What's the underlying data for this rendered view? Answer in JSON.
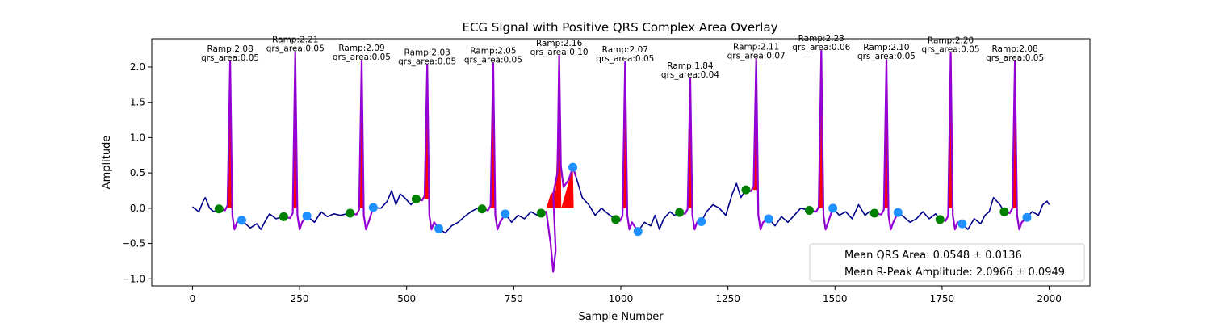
{
  "chart_data": {
    "type": "line",
    "title": "ECG Signal with Positive QRS Complex Area Overlay",
    "xlabel": "Sample Number",
    "ylabel": "Amplitude",
    "xlim": [
      -95,
      2095
    ],
    "ylim": [
      -1.1,
      2.4
    ],
    "xticks": [
      0,
      250,
      500,
      750,
      1000,
      1250,
      1500,
      1750,
      2000
    ],
    "yticks": [
      -1.0,
      -0.5,
      0.0,
      0.5,
      1.0,
      1.5,
      2.0
    ],
    "grid": false,
    "colors": {
      "signal": "#00008b",
      "qrs_segment": "#9400d3",
      "qrs_area": "#ff0000",
      "onset_marker": "#008000",
      "offset_marker": "#1e90ff"
    },
    "beats": [
      {
        "r_sample": 88,
        "r_amp": 2.08,
        "qrs_area": 0.05,
        "onset_sample": 62,
        "onset_amp": -0.01,
        "offset_sample": 115,
        "offset_amp": -0.17,
        "ramp_label": "Ramp:2.08",
        "area_label": "qrs_area:0.05"
      },
      {
        "r_sample": 240,
        "r_amp": 2.21,
        "qrs_area": 0.05,
        "onset_sample": 213,
        "onset_amp": -0.12,
        "offset_sample": 267,
        "offset_amp": -0.11,
        "ramp_label": "Ramp:2.21",
        "area_label": "qrs_area:0.05"
      },
      {
        "r_sample": 395,
        "r_amp": 2.09,
        "qrs_area": 0.05,
        "onset_sample": 368,
        "onset_amp": -0.07,
        "offset_sample": 422,
        "offset_amp": 0.01,
        "ramp_label": "Ramp:2.09",
        "area_label": "qrs_area:0.05"
      },
      {
        "r_sample": 548,
        "r_amp": 2.03,
        "qrs_area": 0.05,
        "onset_sample": 522,
        "onset_amp": 0.13,
        "offset_sample": 575,
        "offset_amp": -0.29,
        "ramp_label": "Ramp:2.03",
        "area_label": "qrs_area:0.05"
      },
      {
        "r_sample": 702,
        "r_amp": 2.05,
        "qrs_area": 0.05,
        "onset_sample": 676,
        "onset_amp": -0.01,
        "offset_sample": 730,
        "offset_amp": -0.08,
        "ramp_label": "Ramp:2.05",
        "area_label": "qrs_area:0.05"
      },
      {
        "r_sample": 856,
        "r_amp": 2.16,
        "qrs_area": 0.1,
        "onset_sample": 814,
        "onset_amp": -0.07,
        "offset_sample": 888,
        "offset_amp": 0.58,
        "ramp_label": "Ramp:2.16",
        "area_label": "qrs_area:0.10"
      },
      {
        "r_sample": 1010,
        "r_amp": 2.07,
        "qrs_area": 0.05,
        "onset_sample": 988,
        "onset_amp": -0.16,
        "offset_sample": 1040,
        "offset_amp": -0.33,
        "ramp_label": "Ramp:2.07",
        "area_label": "qrs_area:0.05"
      },
      {
        "r_sample": 1162,
        "r_amp": 1.84,
        "qrs_area": 0.04,
        "onset_sample": 1137,
        "onset_amp": -0.06,
        "offset_sample": 1188,
        "offset_amp": -0.19,
        "ramp_label": "Ramp:1.84",
        "area_label": "qrs_area:0.04"
      },
      {
        "r_sample": 1316,
        "r_amp": 2.11,
        "qrs_area": 0.07,
        "onset_sample": 1292,
        "onset_amp": 0.26,
        "offset_sample": 1345,
        "offset_amp": -0.15,
        "ramp_label": "Ramp:2.11",
        "area_label": "qrs_area:0.07"
      },
      {
        "r_sample": 1468,
        "r_amp": 2.23,
        "qrs_area": 0.06,
        "onset_sample": 1440,
        "onset_amp": -0.03,
        "offset_sample": 1495,
        "offset_amp": 0.0,
        "ramp_label": "Ramp:2.23",
        "area_label": "qrs_area:0.06"
      },
      {
        "r_sample": 1620,
        "r_amp": 2.1,
        "qrs_area": 0.05,
        "onset_sample": 1592,
        "onset_amp": -0.07,
        "offset_sample": 1647,
        "offset_amp": -0.06,
        "ramp_label": "Ramp:2.10",
        "area_label": "qrs_area:0.05"
      },
      {
        "r_sample": 1770,
        "r_amp": 2.2,
        "qrs_area": 0.05,
        "onset_sample": 1745,
        "onset_amp": -0.16,
        "offset_sample": 1797,
        "offset_amp": -0.22,
        "ramp_label": "Ramp:2.20",
        "area_label": "qrs_area:0.05"
      },
      {
        "r_sample": 1920,
        "r_amp": 2.08,
        "qrs_area": 0.05,
        "onset_sample": 1895,
        "onset_amp": -0.05,
        "offset_sample": 1948,
        "offset_amp": -0.13,
        "ramp_label": "Ramp:2.08",
        "area_label": "qrs_area:0.05"
      }
    ],
    "baseline_trace": {
      "x": [
        0,
        15,
        25,
        30,
        40,
        50,
        62,
        120,
        135,
        150,
        160,
        170,
        180,
        195,
        213,
        267,
        285,
        300,
        315,
        330,
        345,
        368,
        422,
        440,
        455,
        465,
        475,
        485,
        495,
        510,
        522,
        575,
        590,
        605,
        620,
        635,
        650,
        665,
        676,
        730,
        745,
        760,
        775,
        790,
        805,
        814,
        895,
        910,
        925,
        940,
        955,
        970,
        988,
        1040,
        1055,
        1070,
        1080,
        1090,
        1100,
        1115,
        1125,
        1137,
        1188,
        1200,
        1215,
        1230,
        1245,
        1260,
        1270,
        1280,
        1292,
        1345,
        1360,
        1375,
        1390,
        1405,
        1420,
        1440,
        1495,
        1510,
        1525,
        1540,
        1555,
        1570,
        1580,
        1592,
        1647,
        1660,
        1675,
        1690,
        1705,
        1720,
        1735,
        1745,
        1797,
        1810,
        1825,
        1840,
        1850,
        1860,
        1870,
        1885,
        1895,
        1948,
        1960,
        1975,
        1985,
        1995,
        2000
      ],
      "y": [
        0.02,
        -0.05,
        0.1,
        0.15,
        0.0,
        -0.05,
        -0.01,
        -0.2,
        -0.28,
        -0.22,
        -0.3,
        -0.18,
        -0.08,
        -0.15,
        -0.12,
        -0.11,
        -0.2,
        -0.05,
        -0.12,
        -0.08,
        -0.1,
        -0.07,
        0.01,
        0.0,
        0.1,
        0.25,
        0.05,
        0.2,
        0.15,
        0.05,
        0.13,
        -0.29,
        -0.35,
        -0.25,
        -0.2,
        -0.12,
        -0.05,
        0.0,
        -0.01,
        -0.08,
        -0.2,
        -0.1,
        -0.15,
        -0.05,
        -0.1,
        -0.07,
        0.45,
        0.15,
        0.05,
        -0.1,
        0.0,
        -0.08,
        -0.16,
        -0.33,
        -0.2,
        -0.25,
        -0.1,
        -0.3,
        -0.15,
        -0.05,
        -0.1,
        -0.06,
        -0.19,
        -0.05,
        0.05,
        0.0,
        -0.1,
        0.2,
        0.35,
        0.15,
        0.26,
        -0.15,
        -0.25,
        -0.12,
        -0.2,
        -0.1,
        0.0,
        -0.03,
        0.0,
        -0.1,
        -0.05,
        -0.15,
        0.05,
        -0.1,
        -0.05,
        -0.07,
        -0.06,
        -0.12,
        -0.2,
        -0.15,
        -0.05,
        -0.15,
        -0.08,
        -0.16,
        -0.22,
        -0.3,
        -0.15,
        -0.22,
        -0.1,
        -0.05,
        0.15,
        0.05,
        -0.05,
        -0.13,
        -0.05,
        -0.1,
        0.05,
        0.1,
        0.05
      ]
    },
    "legend": {
      "placement": "lower-right",
      "entries": [
        "Mean QRS Area: 0.0548 ± 0.0136",
        "Mean R-Peak Amplitude: 2.0966 ± 0.0949"
      ]
    }
  }
}
